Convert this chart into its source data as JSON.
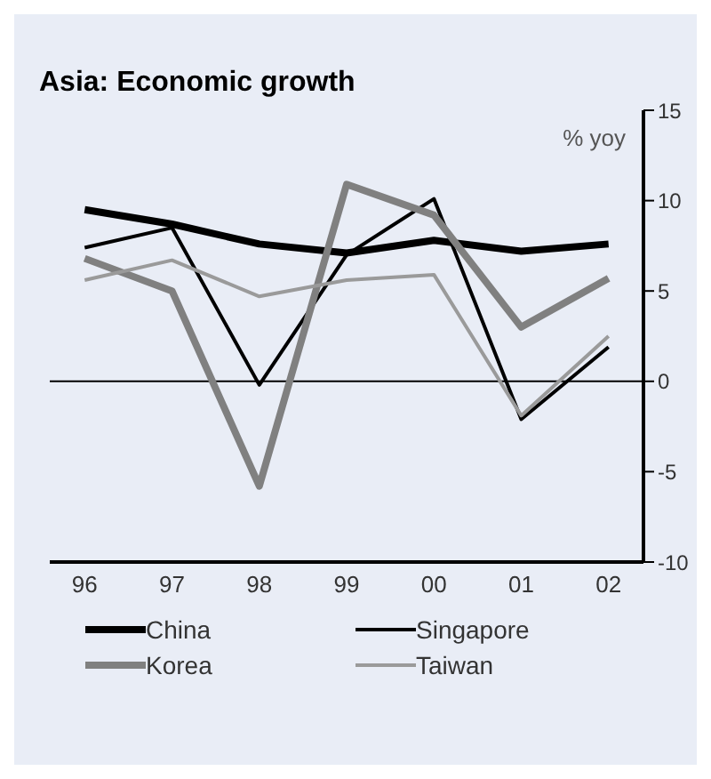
{
  "chart_data": {
    "type": "line",
    "title": "Asia: Economic growth",
    "annotations": [
      "% yoy"
    ],
    "categories": [
      "96",
      "97",
      "98",
      "99",
      "00",
      "01",
      "02"
    ],
    "series": [
      {
        "name": "China",
        "color": "#000000",
        "values": [
          9.5,
          8.7,
          7.6,
          7.1,
          7.8,
          7.2,
          7.6
        ]
      },
      {
        "name": "Singapore",
        "color": "#000000",
        "values": [
          7.4,
          8.5,
          -0.2,
          7.0,
          10.1,
          -2.1,
          1.9
        ]
      },
      {
        "name": "Korea",
        "color": "#808080",
        "values": [
          6.8,
          5.0,
          -5.8,
          10.9,
          9.2,
          3.0,
          5.7
        ]
      },
      {
        "name": "Taiwan",
        "color": "#9a9a9a",
        "values": [
          5.6,
          6.7,
          4.7,
          5.6,
          5.9,
          -1.9,
          2.5
        ]
      }
    ],
    "ylim": [
      -10,
      15
    ],
    "yticks": [
      -10,
      -5,
      0,
      5,
      10,
      15
    ],
    "ref_lines": [
      {
        "axis": "y",
        "value": 0,
        "color": "#000000"
      }
    ],
    "grid": false,
    "legend": "bottom",
    "marker": "none",
    "line_style": "solid"
  }
}
